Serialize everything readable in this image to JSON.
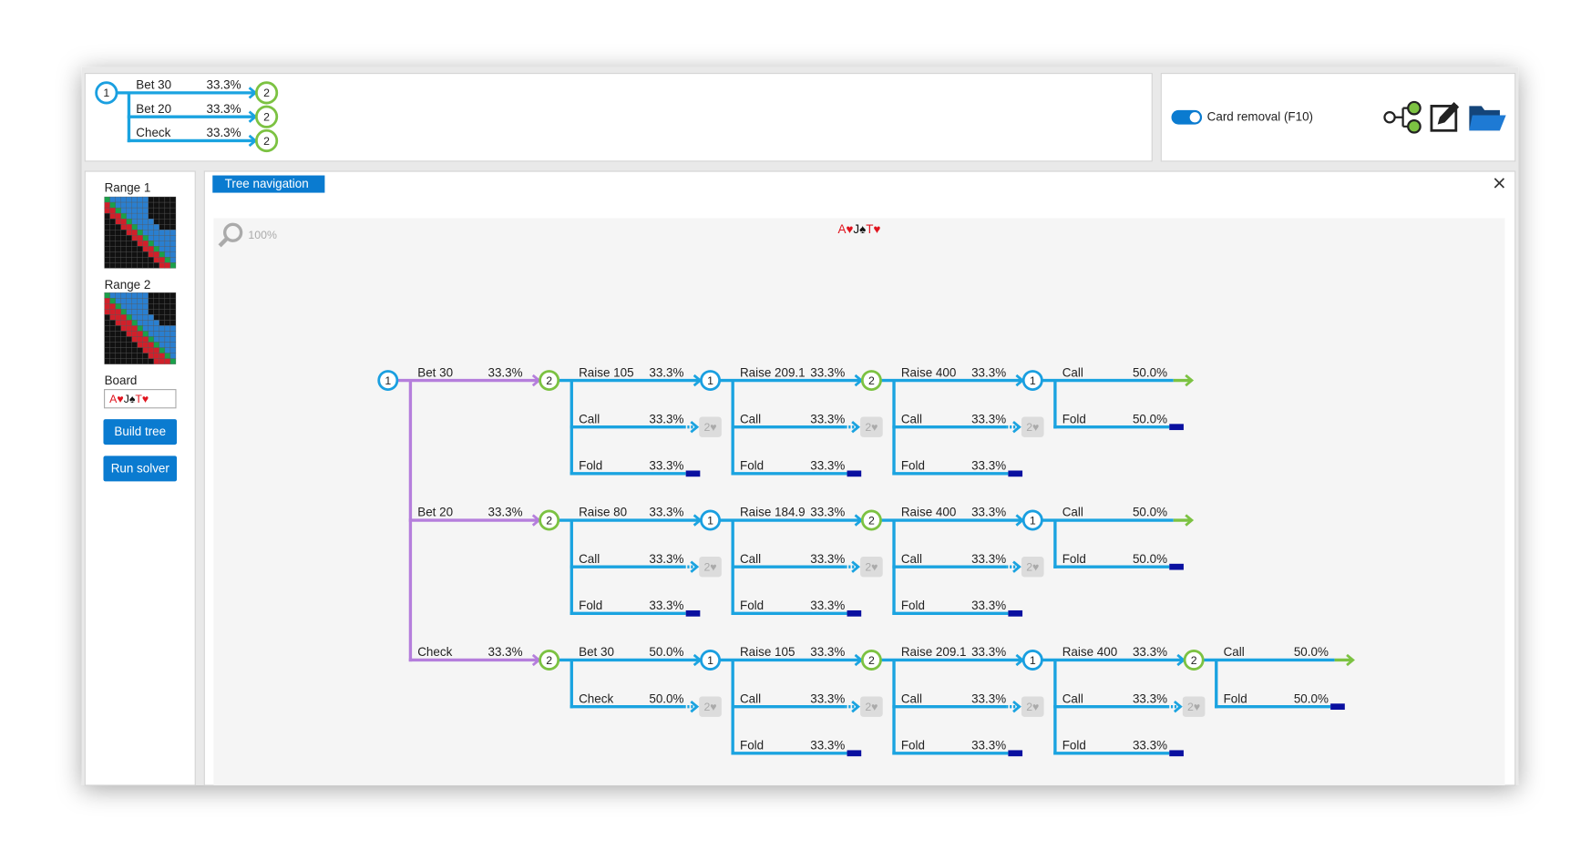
{
  "top_tree": {
    "player": "1",
    "children": [
      {
        "action": "Bet 30",
        "freq": "33.3%",
        "node": {
          "player": "2"
        }
      },
      {
        "action": "Bet 20",
        "freq": "33.3%",
        "node": {
          "player": "2"
        }
      },
      {
        "action": "Check",
        "freq": "33.3%",
        "node": {
          "player": "2"
        }
      }
    ]
  },
  "card_removal": {
    "label": "Card removal (F10)"
  },
  "sidebar": {
    "range_1_label": "Range 1",
    "range_2_label": "Range 2",
    "board_label": "Board",
    "board": [
      "A♥",
      "J♠",
      "T♥"
    ],
    "buttons": [
      "Build tree",
      "Run solver"
    ]
  },
  "panel": {
    "tab": "Tree navigation",
    "zoom": "100%",
    "board": [
      "A♥",
      "J♠",
      "T♥"
    ]
  },
  "tree": {
    "player": "1",
    "children": [
      {
        "action": "Bet 30",
        "freq": "33.3%",
        "node": {
          "player": "2",
          "children": [
            {
              "action": "Raise 105",
              "freq": "33.3%",
              "node": {
                "player": "1",
                "children": [
                  {
                    "action": "Raise 209.1",
                    "freq": "33.3%",
                    "node": {
                      "player": "2",
                      "children": [
                        {
                          "action": "Raise 400",
                          "freq": "33.3%",
                          "node": {
                            "player": "1",
                            "children": [
                              {
                                "action": "Call",
                                "freq": "50.0%"
                              },
                              {
                                "action": "Fold",
                                "freq": "50.0%"
                              }
                            ]
                          }
                        },
                        {
                          "action": "Call",
                          "freq": "33.3%",
                          "node": {
                            "card": "2♥"
                          }
                        },
                        {
                          "action": "Fold",
                          "freq": "33.3%"
                        }
                      ]
                    }
                  },
                  {
                    "action": "Call",
                    "freq": "33.3%",
                    "node": {
                      "card": "2♥"
                    }
                  },
                  {
                    "action": "Fold",
                    "freq": "33.3%"
                  }
                ]
              }
            },
            {
              "action": "Call",
              "freq": "33.3%",
              "node": {
                "card": "2♥"
              }
            },
            {
              "action": "Fold",
              "freq": "33.3%"
            }
          ]
        }
      },
      {
        "action": "Bet 20",
        "freq": "33.3%",
        "node": {
          "player": "2",
          "children": [
            {
              "action": "Raise 80",
              "freq": "33.3%",
              "node": {
                "player": "1",
                "children": [
                  {
                    "action": "Raise 184.9",
                    "freq": "33.3%",
                    "node": {
                      "player": "2",
                      "children": [
                        {
                          "action": "Raise 400",
                          "freq": "33.3%",
                          "node": {
                            "player": "1",
                            "children": [
                              {
                                "action": "Call",
                                "freq": "50.0%"
                              },
                              {
                                "action": "Fold",
                                "freq": "50.0%"
                              }
                            ]
                          }
                        },
                        {
                          "action": "Call",
                          "freq": "33.3%",
                          "node": {
                            "card": "2♥"
                          }
                        },
                        {
                          "action": "Fold",
                          "freq": "33.3%"
                        }
                      ]
                    }
                  },
                  {
                    "action": "Call",
                    "freq": "33.3%",
                    "node": {
                      "card": "2♥"
                    }
                  },
                  {
                    "action": "Fold",
                    "freq": "33.3%"
                  }
                ]
              }
            },
            {
              "action": "Call",
              "freq": "33.3%",
              "node": {
                "card": "2♥"
              }
            },
            {
              "action": "Fold",
              "freq": "33.3%"
            }
          ]
        }
      },
      {
        "action": "Check",
        "freq": "33.3%",
        "node": {
          "player": "2",
          "children": [
            {
              "action": "Bet 30",
              "freq": "50.0%",
              "node": {
                "player": "1",
                "children": [
                  {
                    "action": "Raise 105",
                    "freq": "33.3%",
                    "node": {
                      "player": "2",
                      "children": [
                        {
                          "action": "Raise 209.1",
                          "freq": "33.3%",
                          "node": {
                            "player": "1",
                            "children": [
                              {
                                "action": "Raise 400",
                                "freq": "33.3%",
                                "node": {
                                  "player": "2",
                                  "children": [
                                    {
                                      "action": "Call",
                                      "freq": "50.0%"
                                    },
                                    {
                                      "action": "Fold",
                                      "freq": "50.0%"
                                    }
                                  ]
                                }
                              },
                              {
                                "action": "Call",
                                "freq": "33.3%",
                                "node": {
                                  "card": "2♥"
                                }
                              },
                              {
                                "action": "Fold",
                                "freq": "33.3%"
                              }
                            ]
                          }
                        },
                        {
                          "action": "Call",
                          "freq": "33.3%",
                          "node": {
                            "card": "2♥"
                          }
                        },
                        {
                          "action": "Fold",
                          "freq": "33.3%"
                        }
                      ]
                    }
                  },
                  {
                    "action": "Call",
                    "freq": "33.3%",
                    "node": {
                      "card": "2♥"
                    }
                  },
                  {
                    "action": "Fold",
                    "freq": "33.3%"
                  }
                ]
              }
            },
            {
              "action": "Check",
              "freq": "50.0%",
              "node": {
                "card": "2♥"
              }
            }
          ]
        }
      }
    ]
  }
}
